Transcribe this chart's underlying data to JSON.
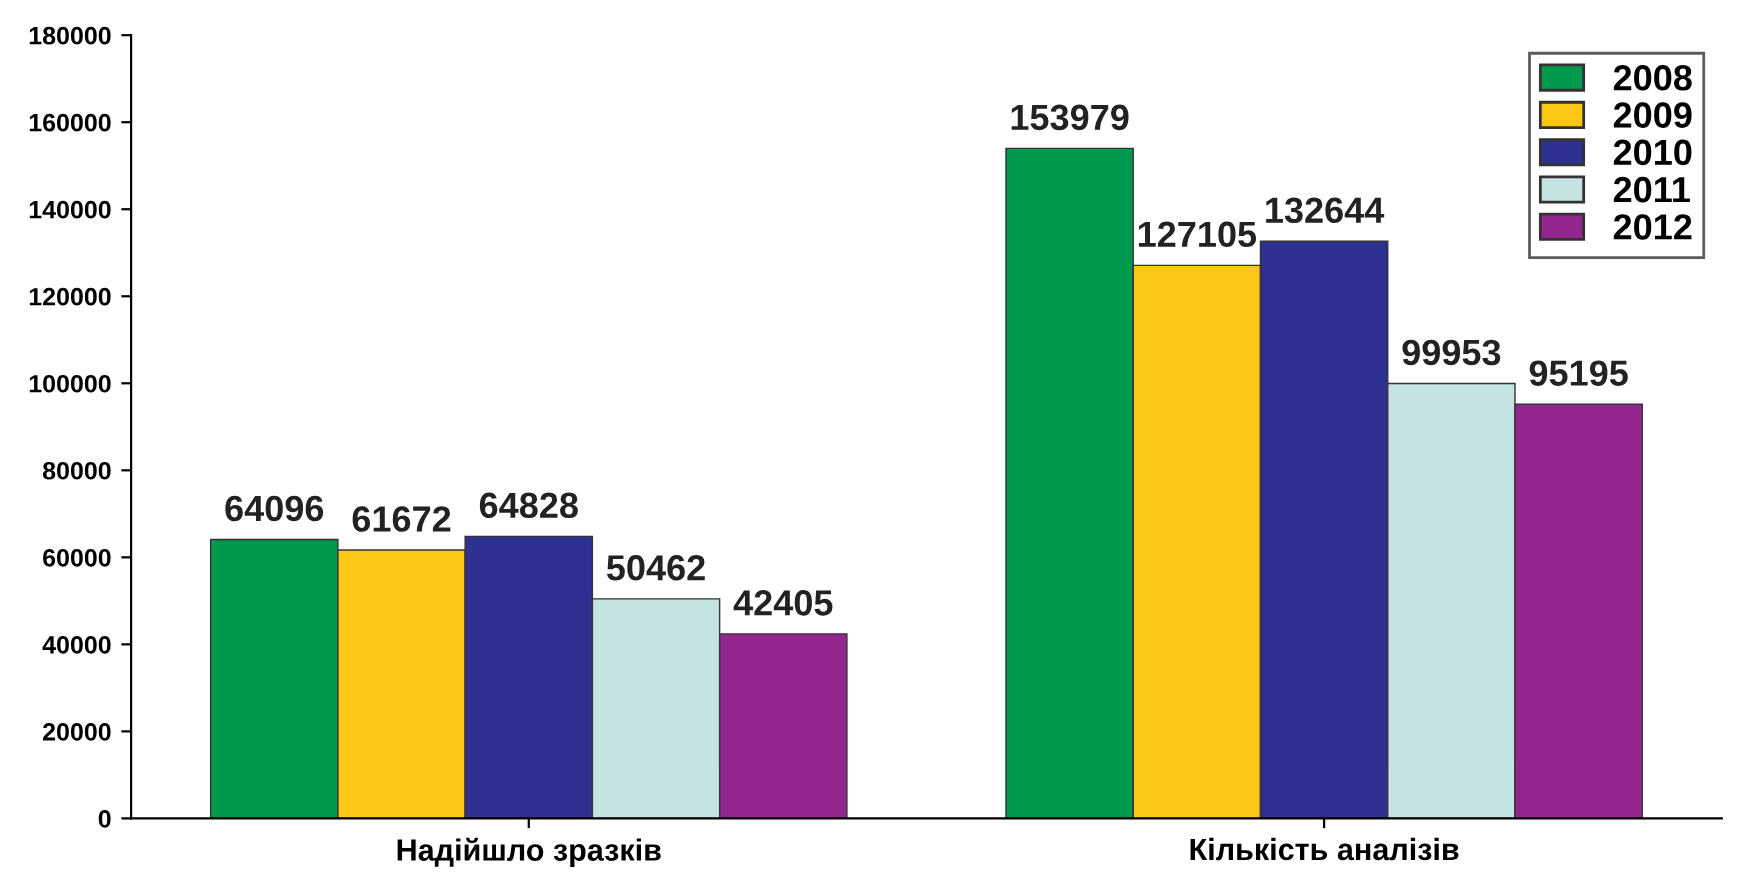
{
  "chart_data": {
    "type": "bar",
    "categories": [
      "Надійшло зразків",
      "Кількість аналізів"
    ],
    "series": [
      {
        "name": "2008",
        "color": "#009a4e",
        "values": [
          64096,
          153979
        ]
      },
      {
        "name": "2009",
        "color": "#fdc715",
        "values": [
          61672,
          127105
        ]
      },
      {
        "name": "2010",
        "color": "#2e3192",
        "values": [
          64828,
          132644
        ]
      },
      {
        "name": "2011",
        "color": "#c5e3e2",
        "values": [
          50462,
          99953
        ]
      },
      {
        "name": "2012",
        "color": "#93278f",
        "values": [
          42405,
          95195
        ]
      }
    ],
    "ylim": [
      0,
      180000
    ],
    "yticks": [
      0,
      20000,
      40000,
      60000,
      80000,
      100000,
      120000,
      140000,
      160000,
      180000
    ],
    "data_labels": true,
    "legend": "top right",
    "grid": false
  }
}
